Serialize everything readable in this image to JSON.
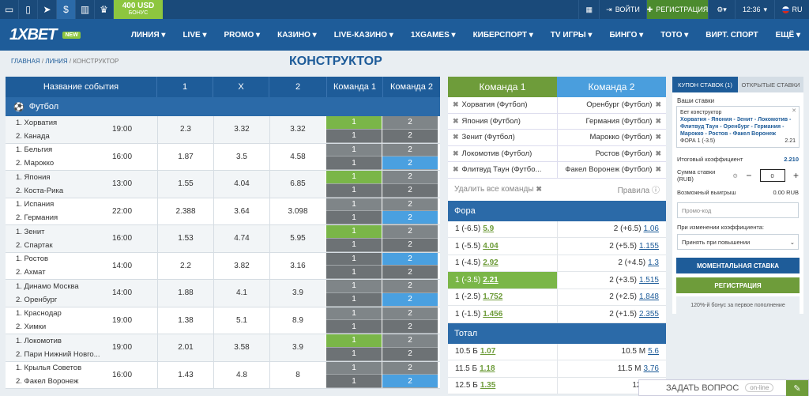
{
  "topbar": {
    "icons": [
      "desktop-icon",
      "mobile-icon",
      "telegram-icon",
      "dollar-icon",
      "stats-icon",
      "trophy-icon"
    ],
    "bonus_amount": "400 USD",
    "bonus_label": "БОНУС",
    "login": "ВОЙТИ",
    "register": "РЕГИСТРАЦИЯ",
    "time": "12:36",
    "lang": "RU"
  },
  "nav": {
    "logo": "1XBET",
    "new_badge": "NEW",
    "items": [
      "ЛИНИЯ",
      "LIVE",
      "PROMO",
      "КАЗИНО",
      "LIVE-КАЗИНО",
      "1XGAMES",
      "КИБЕРСПОРТ",
      "TV ИГРЫ",
      "БИНГО",
      "ТОТО",
      "ВИРТ. СПОРТ",
      "ЕЩЁ"
    ]
  },
  "breadcrumb": {
    "home": "ГЛАВНАЯ",
    "line": "ЛИНИЯ",
    "current": "КОНСТРУКТОР"
  },
  "page_title": "КОНСТРУКТОР",
  "table": {
    "headers": [
      "Название события",
      "1",
      "X",
      "2",
      "Команда 1",
      "Команда 2"
    ],
    "sport": "Футбол",
    "events": [
      {
        "t1": "1. Хорватия",
        "t2": "2. Канада",
        "time": "19:00",
        "o1": "2.3",
        "ox": "3.32",
        "o2": "3.32",
        "c1a": "1",
        "c2a": "2",
        "c1b": "1",
        "c2b": "2",
        "sa": "g",
        "sb": ""
      },
      {
        "t1": "1. Бельгия",
        "t2": "2. Марокко",
        "time": "16:00",
        "o1": "1.87",
        "ox": "3.5",
        "o2": "4.58",
        "c1a": "1",
        "c2a": "2",
        "c1b": "1",
        "c2b": "2",
        "sa": "",
        "sb": "b"
      },
      {
        "t1": "1. Япония",
        "t2": "2. Коста-Рика",
        "time": "13:00",
        "o1": "1.55",
        "ox": "4.04",
        "o2": "6.85",
        "c1a": "1",
        "c2a": "2",
        "c1b": "1",
        "c2b": "2",
        "sa": "g",
        "sb": ""
      },
      {
        "t1": "1. Испания",
        "t2": "2. Германия",
        "time": "22:00",
        "o1": "2.388",
        "ox": "3.64",
        "o2": "3.098",
        "c1a": "1",
        "c2a": "2",
        "c1b": "1",
        "c2b": "2",
        "sa": "",
        "sb": "b"
      },
      {
        "t1": "1. Зенит",
        "t2": "2. Спартак",
        "time": "16:00",
        "o1": "1.53",
        "ox": "4.74",
        "o2": "5.95",
        "c1a": "1",
        "c2a": "2",
        "c1b": "1",
        "c2b": "2",
        "sa": "g",
        "sb": ""
      },
      {
        "t1": "1. Ростов",
        "t2": "2. Ахмат",
        "time": "14:00",
        "o1": "2.2",
        "ox": "3.82",
        "o2": "3.16",
        "c1a": "1",
        "c2a": "2",
        "c1b": "1",
        "c2b": "2",
        "sa": "b",
        "sb": ""
      },
      {
        "t1": "1. Динамо Москва",
        "t2": "2. Оренбург",
        "time": "14:00",
        "o1": "1.88",
        "ox": "4.1",
        "o2": "3.9",
        "c1a": "1",
        "c2a": "2",
        "c1b": "1",
        "c2b": "2",
        "sa": "",
        "sb": "b"
      },
      {
        "t1": "1. Краснодар",
        "t2": "2. Химки",
        "time": "19:00",
        "o1": "1.38",
        "ox": "5.1",
        "o2": "8.9",
        "c1a": "1",
        "c2a": "2",
        "c1b": "1",
        "c2b": "2",
        "sa": "",
        "sb": ""
      },
      {
        "t1": "1. Локомотив",
        "t2": "2. Пари Нижний Новго...",
        "time": "19:00",
        "o1": "2.01",
        "ox": "3.58",
        "o2": "3.9",
        "c1a": "1",
        "c2a": "2",
        "c1b": "1",
        "c2b": "2",
        "sa": "g",
        "sb": ""
      },
      {
        "t1": "1. Крылья Советов",
        "t2": "2. Факел Воронеж",
        "time": "16:00",
        "o1": "1.43",
        "ox": "4.8",
        "o2": "8",
        "c1a": "1",
        "c2a": "2",
        "c1b": "1",
        "c2b": "2",
        "sa": "",
        "sb": "b"
      }
    ]
  },
  "constructor": {
    "team1_label": "Команда 1",
    "team2_label": "Команда 2",
    "pairs": [
      [
        "Хорватия (Футбол)",
        "Оренбург (Футбол)"
      ],
      [
        "Япония (Футбол)",
        "Германия (Футбол)"
      ],
      [
        "Зенит (Футбол)",
        "Марокко (Футбол)"
      ],
      [
        "Локомотив (Футбол)",
        "Ростов (Футбол)"
      ],
      [
        "Флитвуд Таун (Футбо...",
        "Факел Воронеж (Футбол)"
      ]
    ],
    "remove_all": "Удалить все команды",
    "rules": "Правила",
    "fora_title": "Фора",
    "fora": [
      {
        "l": "1 (-6.5)",
        "lv": "5.9",
        "r": "2 (+6.5)",
        "rv": "1.06"
      },
      {
        "l": "1 (-5.5)",
        "lv": "4.04",
        "r": "2 (+5.5)",
        "rv": "1.155"
      },
      {
        "l": "1 (-4.5)",
        "lv": "2.92",
        "r": "2 (+4.5)",
        "rv": "1.3"
      },
      {
        "l": "1 (-3.5)",
        "lv": "2.21",
        "r": "2 (+3.5)",
        "rv": "1.515"
      },
      {
        "l": "1 (-2.5)",
        "lv": "1.752",
        "r": "2 (+2.5)",
        "rv": "1.848"
      },
      {
        "l": "1 (-1.5)",
        "lv": "1.456",
        "r": "2 (+1.5)",
        "rv": "2.355"
      }
    ],
    "total_title": "Тотал",
    "total": [
      {
        "l": "10.5 Б",
        "lv": "1.07",
        "r": "10.5 М",
        "rv": "5.6"
      },
      {
        "l": "11.5 Б",
        "lv": "1.18",
        "r": "11.5 М",
        "rv": "3.76"
      },
      {
        "l": "12.5 Б",
        "lv": "1.35",
        "r": "12.5 М",
        "rv": ""
      }
    ]
  },
  "coupon": {
    "tab_active": "КУПОН СТАВОК (1)",
    "tab_other": "ОТКРЫТЫЕ СТАВКИ",
    "your_bets": "Ваши ставки",
    "bet_type": "Бет конструктор",
    "bet_teams": "Хорватия - Япония - Зенит - Локомотив - Флитвуд Таун - Оренбург - Германия - Марокко - Ростов - Факел Воронеж",
    "bet_market": "ФОРА 1 (-3.5)",
    "bet_odd": "2.21",
    "total_coef_label": "Итоговый коэффициент",
    "total_coef": "2.210",
    "stake_label": "Сумма ставки (RUB)",
    "stake_value": "0",
    "win_label": "Возможный выигрыш",
    "win_value": "0.00 RUB",
    "promo_placeholder": "Промо-код",
    "odds_change_label": "При изменении коэффициента:",
    "odds_change_value": "Принять при повышении",
    "instant_bet": "МОМЕНТАЛЬНАЯ СТАВКА",
    "register": "РЕГИСТРАЦИЯ",
    "bonus_text": "120%-й бонус за первое пополнение"
  },
  "ask": {
    "label": "ЗАДАТЬ ВОПРОС",
    "status": "on-line"
  }
}
